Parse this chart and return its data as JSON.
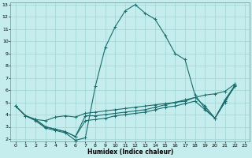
{
  "xlabel": "Humidex (Indice chaleur)",
  "xlim": [
    -0.5,
    23.5
  ],
  "ylim": [
    1.8,
    13.2
  ],
  "xticks": [
    0,
    1,
    2,
    3,
    4,
    5,
    6,
    7,
    8,
    9,
    10,
    11,
    12,
    13,
    14,
    15,
    16,
    17,
    18,
    19,
    20,
    21,
    22,
    23
  ],
  "yticks": [
    2,
    3,
    4,
    5,
    6,
    7,
    8,
    9,
    10,
    11,
    12,
    13
  ],
  "background_color": "#c6eded",
  "grid_color": "#a0d4d4",
  "line_color": "#1a6b6b",
  "series": [
    [
      4.7,
      3.9,
      3.5,
      2.9,
      2.7,
      2.5,
      1.9,
      2.1,
      6.3,
      9.5,
      11.2,
      12.5,
      13.0,
      12.3,
      11.8,
      10.5,
      9.0,
      8.5,
      5.6,
      4.5,
      3.7,
      5.1,
      6.3
    ],
    [
      4.7,
      3.9,
      3.6,
      3.5,
      3.8,
      3.9,
      3.8,
      4.1,
      4.2,
      4.3,
      4.4,
      4.5,
      4.6,
      4.7,
      4.8,
      4.9,
      5.0,
      5.2,
      5.4,
      5.6,
      5.7,
      5.9,
      6.5
    ],
    [
      4.7,
      3.9,
      3.6,
      3.0,
      2.8,
      2.6,
      2.2,
      3.9,
      3.9,
      4.0,
      4.1,
      4.2,
      4.3,
      4.4,
      4.6,
      4.8,
      5.0,
      5.1,
      5.4,
      4.7,
      3.7,
      5.2,
      6.4
    ],
    [
      4.7,
      3.9,
      3.6,
      3.0,
      2.8,
      2.6,
      2.2,
      3.5,
      3.6,
      3.7,
      3.9,
      4.0,
      4.1,
      4.2,
      4.4,
      4.6,
      4.7,
      4.9,
      5.1,
      4.4,
      3.7,
      5.0,
      6.4
    ]
  ]
}
